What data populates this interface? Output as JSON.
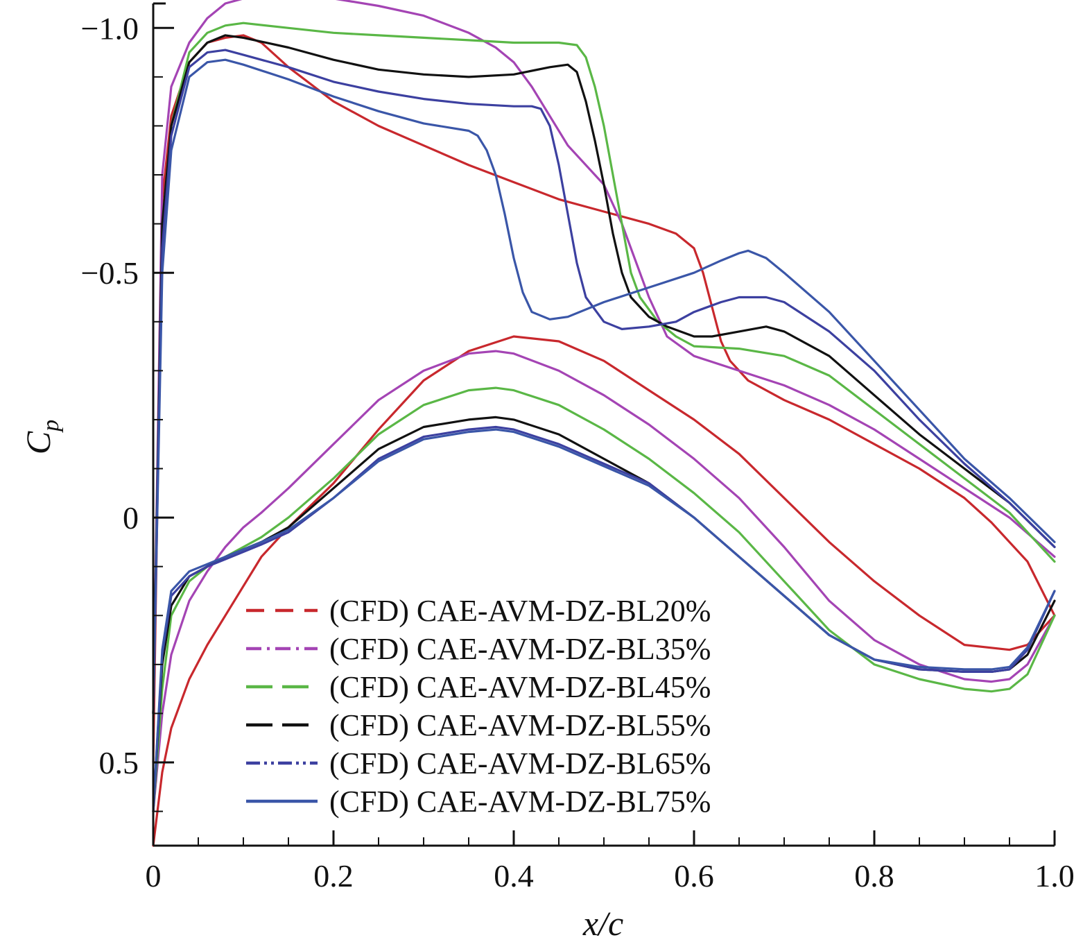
{
  "chart_data": {
    "type": "line",
    "xlabel": "x/c",
    "ylabel_main": "C",
    "ylabel_sub": "p",
    "xlim": [
      0,
      1.0
    ],
    "ylim": [
      0.67,
      -1.05
    ],
    "y_inverted": true,
    "xticks": [
      0,
      0.2,
      0.4,
      0.6,
      0.8,
      1.0
    ],
    "xtick_labels": [
      "0",
      "0.2",
      "0.4",
      "0.6",
      "0.8",
      "1.0"
    ],
    "yticks": [
      -1.0,
      -0.5,
      0,
      0.5
    ],
    "ytick_labels": [
      "−1.0",
      "−0.5",
      "0",
      "0.5"
    ],
    "legend_position": "bottom-center",
    "series": [
      {
        "name": "(CFD) CAE-AVM-DZ-BL20%",
        "color": "#c8282d",
        "dash": "dashed",
        "upper": {
          "x": [
            0.0,
            0.01,
            0.02,
            0.04,
            0.06,
            0.08,
            0.1,
            0.12,
            0.15,
            0.2,
            0.25,
            0.3,
            0.35,
            0.4,
            0.45,
            0.5,
            0.55,
            0.58,
            0.6,
            0.61,
            0.62,
            0.63,
            0.64,
            0.66,
            0.7,
            0.75,
            0.8,
            0.85,
            0.9,
            0.93,
            0.95,
            0.97,
            1.0
          ],
          "y": [
            0.5,
            -0.65,
            -0.82,
            -0.93,
            -0.97,
            -0.98,
            -0.985,
            -0.97,
            -0.92,
            -0.85,
            -0.8,
            -0.76,
            -0.72,
            -0.685,
            -0.65,
            -0.625,
            -0.6,
            -0.58,
            -0.55,
            -0.5,
            -0.43,
            -0.36,
            -0.32,
            -0.28,
            -0.24,
            -0.2,
            -0.15,
            -0.1,
            -0.04,
            0.01,
            0.05,
            0.09,
            0.2
          ]
        },
        "lower": {
          "x": [
            0.0,
            0.01,
            0.02,
            0.04,
            0.06,
            0.08,
            0.1,
            0.12,
            0.15,
            0.2,
            0.25,
            0.3,
            0.35,
            0.4,
            0.45,
            0.5,
            0.55,
            0.6,
            0.65,
            0.7,
            0.75,
            0.8,
            0.85,
            0.9,
            0.95,
            0.97,
            1.0
          ],
          "y": [
            0.67,
            0.52,
            0.43,
            0.33,
            0.26,
            0.2,
            0.14,
            0.08,
            0.02,
            -0.07,
            -0.18,
            -0.28,
            -0.34,
            -0.37,
            -0.36,
            -0.32,
            -0.26,
            -0.2,
            -0.13,
            -0.04,
            0.05,
            0.13,
            0.2,
            0.26,
            0.27,
            0.26,
            0.2
          ]
        }
      },
      {
        "name": "(CFD) CAE-AVM-DZ-BL35%",
        "color": "#a444b4",
        "dash": "dashdot",
        "upper": {
          "x": [
            0.0,
            0.01,
            0.02,
            0.04,
            0.06,
            0.08,
            0.1,
            0.15,
            0.2,
            0.25,
            0.3,
            0.35,
            0.38,
            0.4,
            0.42,
            0.44,
            0.46,
            0.48,
            0.5,
            0.52,
            0.55,
            0.57,
            0.6,
            0.65,
            0.7,
            0.75,
            0.8,
            0.85,
            0.9,
            0.95,
            1.0
          ],
          "y": [
            0.4,
            -0.7,
            -0.88,
            -0.97,
            -1.02,
            -1.05,
            -1.06,
            -1.065,
            -1.06,
            -1.045,
            -1.025,
            -0.99,
            -0.96,
            -0.93,
            -0.88,
            -0.82,
            -0.76,
            -0.72,
            -0.68,
            -0.6,
            -0.45,
            -0.37,
            -0.33,
            -0.3,
            -0.27,
            -0.23,
            -0.18,
            -0.12,
            -0.06,
            0.0,
            0.08
          ]
        },
        "lower": {
          "x": [
            0.0,
            0.01,
            0.02,
            0.04,
            0.06,
            0.08,
            0.1,
            0.12,
            0.15,
            0.2,
            0.25,
            0.3,
            0.35,
            0.38,
            0.4,
            0.45,
            0.5,
            0.55,
            0.6,
            0.65,
            0.7,
            0.75,
            0.8,
            0.85,
            0.9,
            0.93,
            0.95,
            0.97,
            1.0
          ],
          "y": [
            0.6,
            0.4,
            0.28,
            0.17,
            0.11,
            0.06,
            0.02,
            -0.01,
            -0.06,
            -0.15,
            -0.24,
            -0.3,
            -0.335,
            -0.34,
            -0.335,
            -0.3,
            -0.25,
            -0.19,
            -0.12,
            -0.04,
            0.06,
            0.17,
            0.25,
            0.3,
            0.33,
            0.335,
            0.33,
            0.3,
            0.2
          ]
        }
      },
      {
        "name": "(CFD) CAE-AVM-DZ-BL45%",
        "color": "#5ab746",
        "dash": "longdash",
        "upper": {
          "x": [
            0.0,
            0.01,
            0.02,
            0.04,
            0.06,
            0.08,
            0.1,
            0.15,
            0.2,
            0.25,
            0.3,
            0.35,
            0.4,
            0.45,
            0.47,
            0.48,
            0.49,
            0.5,
            0.51,
            0.52,
            0.53,
            0.54,
            0.56,
            0.58,
            0.6,
            0.65,
            0.7,
            0.75,
            0.8,
            0.85,
            0.9,
            0.95,
            1.0
          ],
          "y": [
            0.4,
            -0.6,
            -0.8,
            -0.95,
            -0.99,
            -1.005,
            -1.01,
            -1.0,
            -0.99,
            -0.985,
            -0.98,
            -0.975,
            -0.97,
            -0.97,
            -0.965,
            -0.94,
            -0.88,
            -0.8,
            -0.7,
            -0.6,
            -0.5,
            -0.45,
            -0.4,
            -0.37,
            -0.35,
            -0.345,
            -0.33,
            -0.29,
            -0.22,
            -0.15,
            -0.08,
            -0.01,
            0.09
          ]
        },
        "lower": {
          "x": [
            0.0,
            0.01,
            0.02,
            0.04,
            0.06,
            0.08,
            0.1,
            0.12,
            0.15,
            0.2,
            0.25,
            0.3,
            0.35,
            0.38,
            0.4,
            0.45,
            0.5,
            0.55,
            0.6,
            0.65,
            0.7,
            0.75,
            0.8,
            0.85,
            0.9,
            0.93,
            0.95,
            0.97,
            1.0
          ],
          "y": [
            0.6,
            0.35,
            0.2,
            0.13,
            0.1,
            0.08,
            0.06,
            0.04,
            0.0,
            -0.08,
            -0.17,
            -0.23,
            -0.26,
            -0.265,
            -0.26,
            -0.23,
            -0.18,
            -0.12,
            -0.05,
            0.03,
            0.13,
            0.23,
            0.3,
            0.33,
            0.35,
            0.355,
            0.35,
            0.32,
            0.2
          ]
        }
      },
      {
        "name": "(CFD) CAE-AVM-DZ-BL55%",
        "color": "#111111",
        "dash": "longdash",
        "upper": {
          "x": [
            0.0,
            0.01,
            0.02,
            0.04,
            0.06,
            0.08,
            0.1,
            0.15,
            0.2,
            0.25,
            0.3,
            0.35,
            0.4,
            0.44,
            0.46,
            0.47,
            0.48,
            0.49,
            0.5,
            0.51,
            0.52,
            0.53,
            0.55,
            0.57,
            0.6,
            0.62,
            0.65,
            0.68,
            0.7,
            0.75,
            0.8,
            0.85,
            0.9,
            0.95,
            1.0
          ],
          "y": [
            0.4,
            -0.6,
            -0.8,
            -0.93,
            -0.97,
            -0.985,
            -0.98,
            -0.96,
            -0.935,
            -0.915,
            -0.905,
            -0.9,
            -0.905,
            -0.92,
            -0.925,
            -0.91,
            -0.85,
            -0.77,
            -0.68,
            -0.58,
            -0.5,
            -0.45,
            -0.41,
            -0.39,
            -0.37,
            -0.37,
            -0.38,
            -0.39,
            -0.38,
            -0.33,
            -0.25,
            -0.17,
            -0.1,
            -0.03,
            0.06
          ]
        },
        "lower": {
          "x": [
            0.0,
            0.01,
            0.02,
            0.04,
            0.06,
            0.08,
            0.1,
            0.12,
            0.15,
            0.2,
            0.25,
            0.3,
            0.35,
            0.38,
            0.4,
            0.45,
            0.5,
            0.55,
            0.6,
            0.65,
            0.7,
            0.75,
            0.8,
            0.85,
            0.9,
            0.93,
            0.95,
            0.97,
            1.0
          ],
          "y": [
            0.6,
            0.3,
            0.18,
            0.12,
            0.1,
            0.08,
            0.065,
            0.05,
            0.02,
            -0.06,
            -0.14,
            -0.185,
            -0.2,
            -0.205,
            -0.2,
            -0.17,
            -0.12,
            -0.07,
            0.0,
            0.08,
            0.16,
            0.24,
            0.29,
            0.31,
            0.315,
            0.315,
            0.31,
            0.28,
            0.17
          ]
        }
      },
      {
        "name": "(CFD) CAE-AVM-DZ-BL65%",
        "color": "#3c40a0",
        "dash": "dashdotdot",
        "upper": {
          "x": [
            0.0,
            0.01,
            0.02,
            0.04,
            0.06,
            0.08,
            0.1,
            0.15,
            0.2,
            0.25,
            0.3,
            0.35,
            0.4,
            0.42,
            0.43,
            0.44,
            0.45,
            0.46,
            0.47,
            0.48,
            0.5,
            0.52,
            0.55,
            0.58,
            0.6,
            0.63,
            0.65,
            0.68,
            0.7,
            0.75,
            0.8,
            0.85,
            0.9,
            0.95,
            1.0
          ],
          "y": [
            0.4,
            -0.55,
            -0.78,
            -0.92,
            -0.95,
            -0.955,
            -0.945,
            -0.92,
            -0.89,
            -0.87,
            -0.855,
            -0.845,
            -0.84,
            -0.84,
            -0.835,
            -0.8,
            -0.72,
            -0.62,
            -0.52,
            -0.45,
            -0.4,
            -0.385,
            -0.39,
            -0.4,
            -0.42,
            -0.44,
            -0.45,
            -0.45,
            -0.44,
            -0.38,
            -0.3,
            -0.2,
            -0.11,
            -0.03,
            0.06
          ]
        },
        "lower": {
          "x": [
            0.0,
            0.01,
            0.02,
            0.04,
            0.06,
            0.08,
            0.1,
            0.12,
            0.15,
            0.2,
            0.25,
            0.3,
            0.35,
            0.38,
            0.4,
            0.45,
            0.5,
            0.55,
            0.6,
            0.65,
            0.7,
            0.75,
            0.8,
            0.85,
            0.9,
            0.93,
            0.95,
            0.97,
            1.0
          ],
          "y": [
            0.6,
            0.28,
            0.16,
            0.12,
            0.1,
            0.085,
            0.07,
            0.055,
            0.03,
            -0.04,
            -0.12,
            -0.165,
            -0.18,
            -0.185,
            -0.18,
            -0.15,
            -0.11,
            -0.07,
            0.0,
            0.08,
            0.16,
            0.24,
            0.29,
            0.31,
            0.315,
            0.315,
            0.31,
            0.27,
            0.15
          ]
        }
      },
      {
        "name": "(CFD) CAE-AVM-DZ-BL75%",
        "color": "#3a56a8",
        "dash": "solid",
        "upper": {
          "x": [
            0.0,
            0.01,
            0.02,
            0.04,
            0.06,
            0.08,
            0.1,
            0.15,
            0.2,
            0.25,
            0.3,
            0.35,
            0.36,
            0.37,
            0.38,
            0.39,
            0.4,
            0.41,
            0.42,
            0.44,
            0.46,
            0.5,
            0.55,
            0.6,
            0.63,
            0.65,
            0.66,
            0.68,
            0.7,
            0.75,
            0.8,
            0.85,
            0.9,
            0.95,
            1.0
          ],
          "y": [
            0.4,
            -0.5,
            -0.75,
            -0.9,
            -0.93,
            -0.935,
            -0.925,
            -0.895,
            -0.86,
            -0.83,
            -0.805,
            -0.79,
            -0.78,
            -0.75,
            -0.7,
            -0.62,
            -0.53,
            -0.46,
            -0.42,
            -0.405,
            -0.41,
            -0.44,
            -0.47,
            -0.5,
            -0.525,
            -0.54,
            -0.545,
            -0.53,
            -0.5,
            -0.42,
            -0.32,
            -0.22,
            -0.12,
            -0.04,
            0.05
          ]
        },
        "lower": {
          "x": [
            0.0,
            0.01,
            0.02,
            0.04,
            0.06,
            0.08,
            0.1,
            0.12,
            0.15,
            0.2,
            0.25,
            0.3,
            0.35,
            0.38,
            0.4,
            0.45,
            0.5,
            0.55,
            0.6,
            0.65,
            0.7,
            0.75,
            0.8,
            0.85,
            0.9,
            0.93,
            0.95,
            0.97,
            1.0
          ],
          "y": [
            0.6,
            0.27,
            0.15,
            0.11,
            0.095,
            0.08,
            0.065,
            0.05,
            0.025,
            -0.04,
            -0.115,
            -0.16,
            -0.175,
            -0.18,
            -0.175,
            -0.145,
            -0.105,
            -0.065,
            0.0,
            0.08,
            0.16,
            0.24,
            0.29,
            0.305,
            0.31,
            0.31,
            0.305,
            0.265,
            0.15
          ]
        }
      }
    ]
  }
}
